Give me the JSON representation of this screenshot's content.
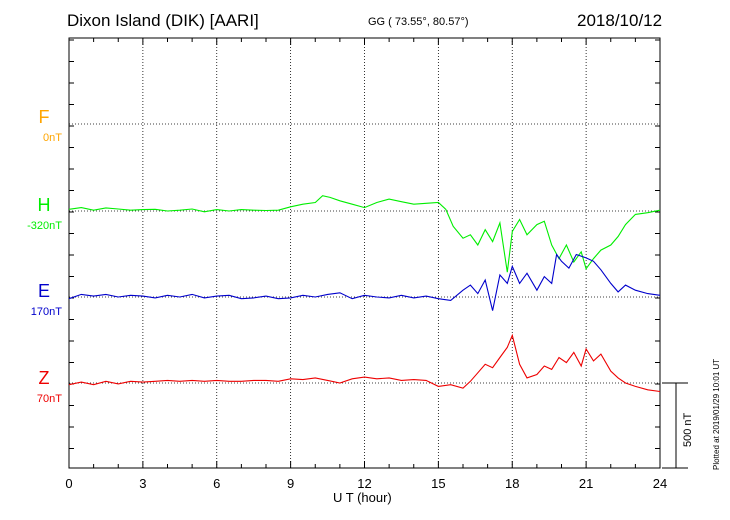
{
  "header": {
    "station": "Dixon Island (DIK)  [AARI]",
    "coords": "GG ( 73.55°,  80.57°)",
    "date": "2018/10/12"
  },
  "plotted_note": "Plotted at 2019/01/29 10:01 UT",
  "scale_label": "500 nT",
  "chart_data": {
    "type": "line",
    "xlabel": "U T (hour)",
    "xlim": [
      0,
      24
    ],
    "x_ticks": [
      "0",
      "3",
      "6",
      "9",
      "12",
      "15",
      "18",
      "21",
      "24"
    ],
    "grid": true,
    "colors": {
      "F": "#ffa500",
      "H": "#00ee00",
      "E": "#0000cc",
      "Z": "#ee0000"
    },
    "series": [
      {
        "name": "F",
        "baseline_label": "0nT",
        "x": [],
        "y": []
      },
      {
        "name": "H",
        "baseline_label": "-320nT",
        "x": [
          0,
          0.5,
          1,
          1.5,
          2,
          2.5,
          3,
          3.5,
          4,
          4.5,
          5,
          5.5,
          6,
          6.5,
          7,
          7.5,
          8,
          8.5,
          9,
          9.5,
          10,
          10.3,
          10.6,
          11,
          11.5,
          12,
          12.5,
          13,
          13.5,
          14,
          14.5,
          15,
          15.3,
          15.6,
          16,
          16.3,
          16.6,
          16.9,
          17.2,
          17.5,
          17.8,
          18,
          18.3,
          18.6,
          19,
          19.3,
          19.6,
          19.9,
          20.2,
          20.5,
          20.8,
          21,
          21.3,
          21.6,
          22,
          22.3,
          22.6,
          23,
          23.5,
          24
        ],
        "y": [
          10,
          20,
          5,
          18,
          12,
          5,
          8,
          10,
          0,
          5,
          12,
          -5,
          8,
          0,
          8,
          5,
          3,
          5,
          25,
          40,
          50,
          90,
          80,
          60,
          40,
          20,
          50,
          70,
          55,
          40,
          45,
          50,
          10,
          -90,
          -160,
          -140,
          -200,
          -110,
          -180,
          -70,
          -360,
          -120,
          -50,
          -140,
          -80,
          -60,
          -200,
          -280,
          -200,
          -300,
          -240,
          -340,
          -280,
          -230,
          -200,
          -150,
          -80,
          -20,
          -10,
          5
        ]
      },
      {
        "name": "E",
        "baseline_label": "170nT",
        "x": [
          0,
          0.5,
          1,
          1.5,
          2,
          2.5,
          3,
          3.5,
          4,
          4.5,
          5,
          5.5,
          6,
          6.5,
          7,
          7.5,
          8,
          8.5,
          9,
          9.5,
          10,
          10.5,
          11,
          11.5,
          12,
          12.5,
          13,
          13.5,
          14,
          14.5,
          15,
          15.5,
          16,
          16.3,
          16.6,
          16.9,
          17.2,
          17.5,
          17.8,
          18,
          18.3,
          18.6,
          19,
          19.3,
          19.6,
          19.8,
          20,
          20.3,
          20.6,
          21,
          21.3,
          21.6,
          22,
          22.3,
          22.6,
          23,
          23.5,
          24
        ],
        "y": [
          -10,
          15,
          5,
          15,
          0,
          10,
          5,
          -5,
          10,
          0,
          15,
          -5,
          5,
          10,
          -10,
          -5,
          5,
          -10,
          -5,
          10,
          0,
          15,
          25,
          -10,
          10,
          0,
          -5,
          10,
          -5,
          5,
          -10,
          -20,
          40,
          70,
          20,
          100,
          -80,
          130,
          80,
          180,
          80,
          140,
          40,
          120,
          80,
          250,
          210,
          170,
          250,
          230,
          210,
          160,
          80,
          30,
          70,
          40,
          20,
          10
        ]
      },
      {
        "name": "Z",
        "baseline_label": "70nT",
        "x": [
          0,
          0.5,
          1,
          1.5,
          2,
          2.5,
          3,
          3.5,
          4,
          4.5,
          5,
          5.5,
          6,
          6.5,
          7,
          7.5,
          8,
          8.5,
          9,
          9.5,
          10,
          10.5,
          11,
          11.5,
          12,
          12.5,
          13,
          13.5,
          14,
          14.5,
          15,
          15.5,
          16,
          16.3,
          16.6,
          16.9,
          17.2,
          17.5,
          17.8,
          18,
          18.3,
          18.6,
          19,
          19.3,
          19.6,
          19.9,
          20.2,
          20.5,
          20.8,
          21,
          21.3,
          21.6,
          22,
          22.3,
          22.6,
          23,
          23.5,
          24
        ],
        "y": [
          -10,
          5,
          -10,
          10,
          -5,
          10,
          5,
          10,
          15,
          10,
          15,
          10,
          15,
          10,
          10,
          15,
          15,
          10,
          25,
          20,
          30,
          15,
          0,
          25,
          35,
          25,
          30,
          15,
          20,
          15,
          -20,
          -10,
          -30,
          10,
          60,
          110,
          90,
          150,
          210,
          280,
          110,
          30,
          50,
          100,
          80,
          150,
          120,
          180,
          100,
          200,
          130,
          170,
          70,
          30,
          0,
          -20,
          -40,
          -50
        ]
      }
    ]
  }
}
